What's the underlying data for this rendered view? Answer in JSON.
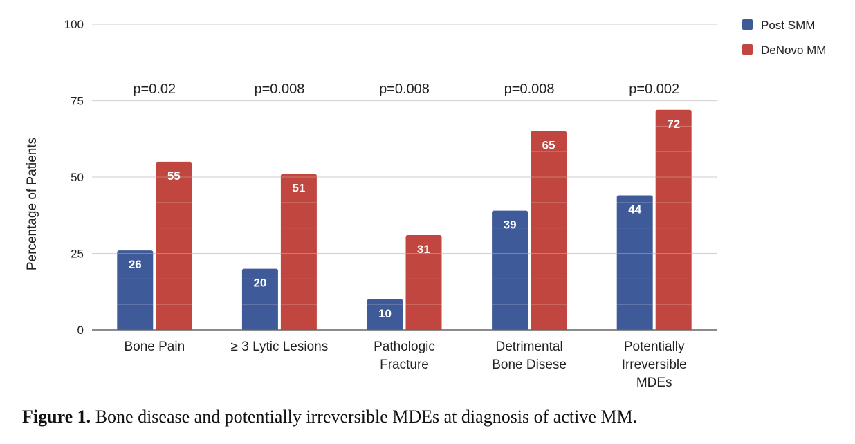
{
  "chart_data": {
    "type": "bar",
    "title": "",
    "xlabel": "",
    "ylabel": "Percentage of Patients",
    "ylim": [
      0,
      100
    ],
    "yticks": [
      0,
      25,
      50,
      75,
      100
    ],
    "grid": true,
    "legend_position": "top-right",
    "categories": [
      [
        "Bone Pain"
      ],
      [
        "≥ 3 Lytic Lesions"
      ],
      [
        "Pathologic",
        "Fracture"
      ],
      [
        "Detrimental",
        "Bone Disese"
      ],
      [
        "Potentially",
        "Irreversible",
        "MDEs"
      ]
    ],
    "series": [
      {
        "name": "Post SMM",
        "color": "#3f5a98",
        "values": [
          26,
          20,
          10,
          39,
          44
        ]
      },
      {
        "name": "DeNovo MM",
        "color": "#c0463f",
        "values": [
          55,
          51,
          31,
          65,
          72
        ]
      }
    ],
    "annotations": [
      "p=0.02",
      "p=0.008",
      "p=0.008",
      "p=0.008",
      "p=0.002"
    ]
  },
  "caption": {
    "label": "Figure 1.",
    "text": " Bone disease and potentially irreversible MDEs at diagnosis of active MM."
  }
}
